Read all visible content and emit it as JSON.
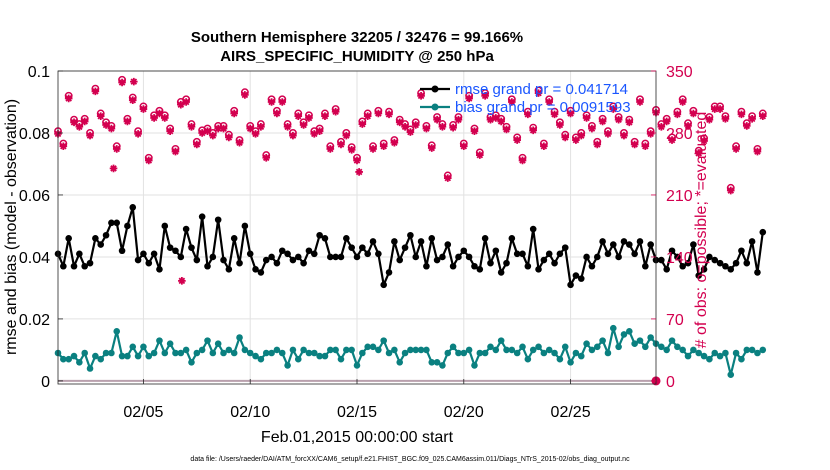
{
  "chart_data": {
    "type": "line",
    "title": "Southern Hemisphere 32205 / 32476 = 99.166%",
    "subtitle": "AIRS_SPECIFIC_HUMIDITY @ 250 hPa",
    "xlabel": "Feb.01,2015 00:00:00 start",
    "ylabel": "rmse and bias (model - observation)",
    "y2label": "# of obs: o=possible; *=evaluated",
    "xlim": [
      1,
      29
    ],
    "ylim": [
      -0.001,
      0.1
    ],
    "y2lim": [
      -3.5,
      350
    ],
    "x_ticks": [
      5,
      10,
      15,
      20,
      25
    ],
    "x_tick_labels": [
      "02/05",
      "02/10",
      "02/15",
      "02/20",
      "02/25"
    ],
    "y_ticks": [
      0,
      0.02,
      0.04,
      0.06,
      0.08,
      0.1
    ],
    "y_tick_labels": [
      "0",
      "0.02",
      "0.04",
      "0.06",
      "0.08",
      "0.1"
    ],
    "y2_ticks": [
      0,
      70,
      140,
      210,
      280,
      350
    ],
    "y2_tick_labels": [
      "0",
      "70",
      "140",
      "210",
      "280",
      "350"
    ],
    "grid": true,
    "legend_position": "top-right",
    "legend": [
      "rmse grand pr = 0.041714",
      "bias grand pr = 0.0091593"
    ],
    "footer": "data file: /Users/raeder/DAI/ATM_forcXX/CAM6_setup/f.e21.FHIST_BGC.f09_025.CAM6assim.011/Diags_NTrS_2015-02/obs_diag_output.nc",
    "colors": {
      "rmse": "#000000",
      "bias": "#0a8080",
      "counts": "#d3004f"
    },
    "x_step_days": 0.25,
    "series": [
      {
        "name": "rmse",
        "axis": "left",
        "marker": "dot",
        "values": [
          0.041,
          0.037,
          0.046,
          0.037,
          0.041,
          0.037,
          0.038,
          0.046,
          0.044,
          0.047,
          0.051,
          0.051,
          0.042,
          0.05,
          0.056,
          0.039,
          0.041,
          0.038,
          0.041,
          0.036,
          0.05,
          0.043,
          0.042,
          0.04,
          0.049,
          0.043,
          0.039,
          0.053,
          0.037,
          0.04,
          0.052,
          0.039,
          0.036,
          0.046,
          0.038,
          0.05,
          0.041,
          0.036,
          0.035,
          0.039,
          0.04,
          0.038,
          0.042,
          0.041,
          0.039,
          0.04,
          0.038,
          0.042,
          0.041,
          0.047,
          0.046,
          0.04,
          0.04,
          0.04,
          0.046,
          0.043,
          0.04,
          0.043,
          0.041,
          0.045,
          0.041,
          0.031,
          0.035,
          0.045,
          0.039,
          0.043,
          0.047,
          0.04,
          0.045,
          0.037,
          0.046,
          0.039,
          0.04,
          0.044,
          0.037,
          0.04,
          0.042,
          0.04,
          0.037,
          0.036,
          0.046,
          0.038,
          0.042,
          0.035,
          0.038,
          0.046,
          0.041,
          0.041,
          0.037,
          0.049,
          0.036,
          0.039,
          0.041,
          0.038,
          0.041,
          0.043,
          0.031,
          0.034,
          0.033,
          0.04,
          0.037,
          0.04,
          0.045,
          0.041,
          0.044,
          0.04,
          0.045,
          0.044,
          0.041,
          0.045,
          0.037,
          0.044,
          0.039,
          0.039,
          0.036,
          0.042,
          0.04,
          0.037,
          0.038,
          0.044,
          0.034,
          0.036,
          0.04,
          0.039,
          0.038,
          0.037,
          0.036,
          0.038,
          0.042,
          0.038,
          0.045,
          0.035,
          0.048
        ]
      },
      {
        "name": "bias",
        "axis": "left",
        "marker": "dot",
        "values": [
          0.009,
          0.007,
          0.007,
          0.008,
          0.006,
          0.009,
          0.004,
          0.008,
          0.007,
          0.009,
          0.009,
          0.016,
          0.008,
          0.008,
          0.011,
          0.008,
          0.011,
          0.008,
          0.009,
          0.013,
          0.009,
          0.012,
          0.009,
          0.009,
          0.01,
          0.006,
          0.009,
          0.01,
          0.013,
          0.009,
          0.012,
          0.009,
          0.01,
          0.009,
          0.014,
          0.01,
          0.009,
          0.008,
          0.007,
          0.009,
          0.009,
          0.01,
          0.009,
          0.005,
          0.01,
          0.007,
          0.01,
          0.009,
          0.009,
          0.008,
          0.008,
          0.01,
          0.01,
          0.007,
          0.01,
          0.01,
          0.005,
          0.009,
          0.011,
          0.011,
          0.01,
          0.013,
          0.009,
          0.01,
          0.006,
          0.009,
          0.01,
          0.01,
          0.01,
          0.01,
          0.006,
          0.006,
          0.005,
          0.009,
          0.011,
          0.009,
          0.009,
          0.01,
          0.005,
          0.009,
          0.009,
          0.011,
          0.01,
          0.013,
          0.01,
          0.01,
          0.009,
          0.011,
          0.007,
          0.01,
          0.011,
          0.009,
          0.01,
          0.009,
          0.007,
          0.011,
          0.006,
          0.009,
          0.008,
          0.012,
          0.01,
          0.011,
          0.013,
          0.009,
          0.017,
          0.011,
          0.015,
          0.016,
          0.012,
          0.013,
          0.011,
          0.014,
          0.012,
          0.011,
          0.01,
          0.013,
          0.011,
          0.01,
          0.008,
          0.01,
          0.009,
          0.008,
          0.007,
          0.009,
          0.008,
          0.009,
          0.002,
          0.009,
          0.007,
          0.01,
          0.01,
          0.009,
          0.01
        ]
      },
      {
        "name": "possible obs",
        "axis": "right",
        "marker": "o",
        "values": [
          282,
          268,
          322,
          295,
          290,
          296,
          280,
          330,
          302,
          292,
          288,
          265,
          340,
          296,
          320,
          282,
          310,
          252,
          300,
          305,
          300,
          285,
          262,
          315,
          318,
          290,
          270,
          283,
          285,
          280,
          288,
          288,
          278,
          305,
          272,
          326,
          288,
          282,
          290,
          255,
          318,
          305,
          318,
          290,
          280,
          302,
          292,
          300,
          282,
          285,
          302,
          265,
          307,
          270,
          280,
          264,
          252,
          293,
          302,
          265,
          305,
          268,
          304,
          272,
          295,
          290,
          284,
          292,
          325,
          288,
          266,
          298,
          290,
          232,
          289,
          298,
          268,
          322,
          285,
          258,
          325,
          298,
          300,
          296,
          287,
          318,
          275,
          252,
          304,
          286,
          328,
          268,
          318,
          304,
          292,
          278,
          305,
          275,
          280,
          300,
          288,
          270,
          296,
          282,
          310,
          298,
          280,
          295,
          270,
          318,
          268,
          282,
          306,
          290,
          296,
          275,
          304,
          318,
          291,
          305,
          260,
          274,
          298,
          310,
          310,
          299,
          218,
          265,
          304,
          291,
          299,
          262,
          302
        ]
      },
      {
        "name": "evaluated obs",
        "axis": "right",
        "marker": "star",
        "values": [
          279,
          265,
          319,
          292,
          287,
          293,
          277,
          327,
          299,
          289,
          285,
          262,
          337,
          293,
          317,
          279,
          307,
          249,
          297,
          302,
          297,
          282,
          259,
          312,
          315,
          287,
          267,
          280,
          282,
          277,
          285,
          285,
          275,
          302,
          269,
          323,
          285,
          279,
          287,
          252,
          315,
          302,
          315,
          287,
          277,
          299,
          289,
          297,
          279,
          282,
          299,
          262,
          304,
          267,
          277,
          261,
          249,
          290,
          299,
          262,
          302,
          265,
          301,
          269,
          292,
          287,
          281,
          289,
          322,
          285,
          263,
          295,
          287,
          229,
          286,
          295,
          265,
          319,
          282,
          255,
          322,
          295,
          297,
          293,
          284,
          315,
          272,
          249,
          301,
          283,
          325,
          265,
          315,
          301,
          289,
          275,
          302,
          272,
          277,
          297,
          285,
          267,
          293,
          279,
          307,
          295,
          277,
          292,
          267,
          315,
          265,
          279,
          303,
          287,
          293,
          272,
          301,
          315,
          288,
          302,
          257,
          271,
          295,
          307,
          307,
          296,
          215,
          262,
          301,
          288,
          296,
          259,
          299
        ]
      },
      {
        "name": "outliers",
        "axis": "right",
        "marker": "star",
        "points": [
          [
            3.6,
            240
          ],
          [
            4.55,
            338
          ],
          [
            6.8,
            113
          ],
          [
            15.1,
            236
          ],
          [
            29.0,
            0
          ]
        ]
      }
    ]
  }
}
